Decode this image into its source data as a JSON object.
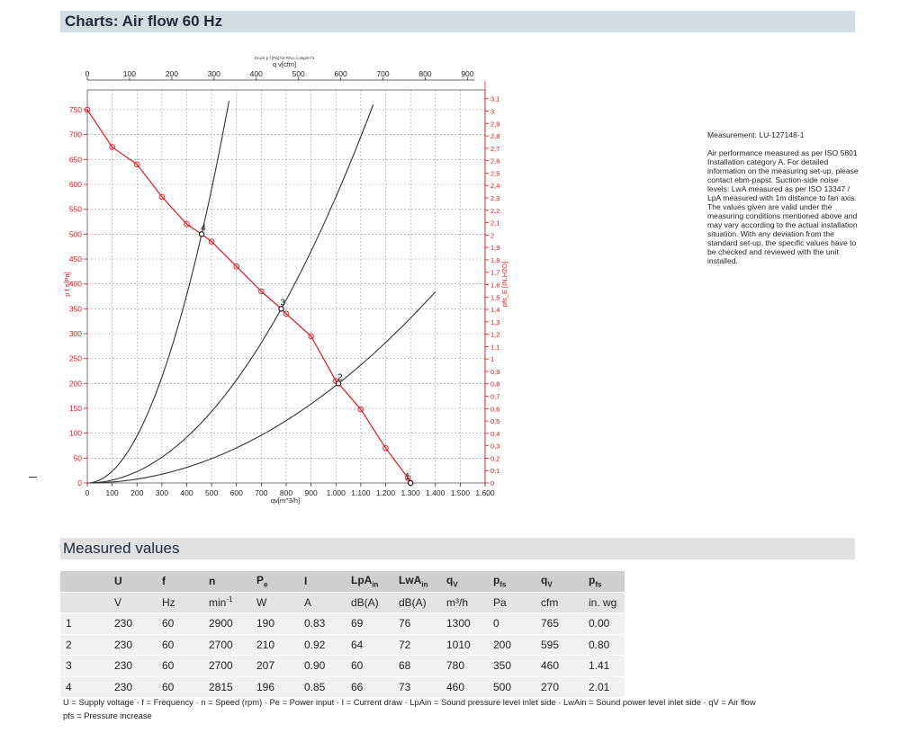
{
  "header": {
    "title": "Charts: Air flow 60 Hz"
  },
  "measured_header": {
    "title": "Measured values"
  },
  "note": {
    "title": "Measurement: LU-127148-1",
    "text": "Air performance measured as per ISO 5801 Installation category A. For detailed information on the measuring set-up, please contact ebm-papst. Suction-side noise levels: LwA measured as per ISO 13347 / LpA measured with 1m distance to fan axis. The values given are valid under the measuring conditions mentioned above and may vary according to the actual installation situation. With any deviation from the standard set-up, the specific values have to be checked and reviewed with the unit installed."
  },
  "colors": {
    "fan_curve": "#e8141b",
    "system_curve": "#333333",
    "grid": "#9a9a9a",
    "header_bg": "#d3dbe3"
  },
  "chart_data": {
    "type": "line",
    "title": "Druck p f [Pa] für Rho=1,2kg/m^3",
    "xlabel": "qv[m^3/h]",
    "x_top_label": "q v[cfm]",
    "ylabel_left": "p f s[Pa]",
    "ylabel_right": "pfs_E [IN.H2O]",
    "xlim": [
      0,
      1600
    ],
    "ylim": [
      0,
      760
    ],
    "x_ticks": [
      0,
      100,
      200,
      300,
      400,
      500,
      600,
      700,
      800,
      900,
      1000,
      1100,
      1200,
      1300,
      1400,
      1500,
      1600
    ],
    "x_tick_labels": [
      "0",
      "100",
      "200",
      "300",
      "400",
      "500",
      "600",
      "700",
      "800",
      "900",
      "1.000",
      "1.100",
      "1.200",
      "1.300",
      "1.400",
      "1.500",
      "1.600"
    ],
    "y_ticks": [
      0,
      50,
      100,
      150,
      200,
      250,
      300,
      350,
      400,
      450,
      500,
      550,
      600,
      650,
      700,
      750
    ],
    "y_tick_labels": [
      "0",
      "50",
      "100",
      "150",
      "200",
      "250",
      "300",
      "350",
      "400",
      "450",
      "500",
      "550",
      "600",
      "650",
      "700",
      "750"
    ],
    "x_top_ticks": [
      0,
      100,
      200,
      300,
      400,
      500,
      600,
      700,
      800,
      900
    ],
    "x_top_tick_labels": [
      "0",
      "100",
      "200",
      "300",
      "400",
      "500",
      "600",
      "700",
      "800",
      "900"
    ],
    "y_right_ticks": [
      0,
      0.1,
      0.2,
      0.3,
      0.4,
      0.5,
      0.6,
      0.7,
      0.8,
      0.9,
      1,
      1.1,
      1.2,
      1.3,
      1.4,
      1.5,
      1.6,
      1.7,
      1.8,
      1.9,
      2,
      2.1,
      2.2,
      2.3,
      2.4,
      2.5,
      2.6,
      2.7,
      2.8,
      2.9,
      3,
      3.1
    ],
    "y_right_tick_labels": [
      "0",
      "0,1",
      "0,2",
      "0,3",
      "0,4",
      "0,5",
      "0,6",
      "0,7",
      "0,8",
      "0,9",
      "1",
      "1,1",
      "1,2",
      "1,3",
      "1,4",
      "1,5",
      "1,6",
      "1,7",
      "1,8",
      "1,9",
      "2",
      "2,1",
      "2,2",
      "2,3",
      "2,4",
      "2,5",
      "2,6",
      "2,7",
      "2,8",
      "2,9",
      "3",
      "3,1"
    ],
    "grid": true,
    "series": [
      {
        "name": "p f s",
        "x": [
          0,
          100,
          200,
          300,
          400,
          460,
          500,
          600,
          700,
          780,
          800,
          900,
          1000,
          1010,
          1100,
          1200,
          1290,
          1300
        ],
        "y": [
          750,
          675,
          640,
          575,
          520,
          500,
          485,
          435,
          385,
          350,
          340,
          295,
          205,
          200,
          148,
          70,
          10,
          0
        ]
      }
    ],
    "system_curves": [
      {
        "k": 0.002363,
        "x_max": 570
      },
      {
        "k": 0.000575,
        "x_max": 1150
      },
      {
        "k": 0.000196,
        "x_max": 1400
      }
    ],
    "operating_points": [
      {
        "label": "1",
        "x": 1300,
        "y": 0
      },
      {
        "label": "2",
        "x": 1010,
        "y": 200
      },
      {
        "label": "3",
        "x": 780,
        "y": 350
      },
      {
        "label": "4",
        "x": 460,
        "y": 500
      }
    ]
  },
  "table": {
    "header1": [
      "",
      "U",
      "f",
      "n",
      "Pe",
      "I",
      "LpAin",
      "LwAin",
      "qV",
      "pfs",
      "qV",
      "pfs"
    ],
    "header2": [
      "",
      "V",
      "Hz",
      "min-1",
      "W",
      "A",
      "dB(A)",
      "dB(A)",
      "m³/h",
      "Pa",
      "cfm",
      "in. wg"
    ],
    "rows": [
      [
        "1",
        "230",
        "60",
        "2900",
        "190",
        "0.83",
        "69",
        "76",
        "1300",
        "0",
        "765",
        "0.00"
      ],
      [
        "2",
        "230",
        "60",
        "2700",
        "210",
        "0.92",
        "64",
        "72",
        "1010",
        "200",
        "595",
        "0.80"
      ],
      [
        "3",
        "230",
        "60",
        "2700",
        "207",
        "0.90",
        "60",
        "68",
        "780",
        "350",
        "460",
        "1.41"
      ],
      [
        "4",
        "230",
        "60",
        "2815",
        "196",
        "0.85",
        "66",
        "73",
        "460",
        "500",
        "270",
        "2.01"
      ]
    ]
  },
  "legend": {
    "line1": "U = Supply voltage · f = Frequency · n = Speed (rpm) · Pe = Power input · I = Current draw · LpAin = Sound pressure level inlet side · LwAin = Sound power level inlet side · qV = Air flow",
    "line2": "pfs = Pressure increase"
  }
}
